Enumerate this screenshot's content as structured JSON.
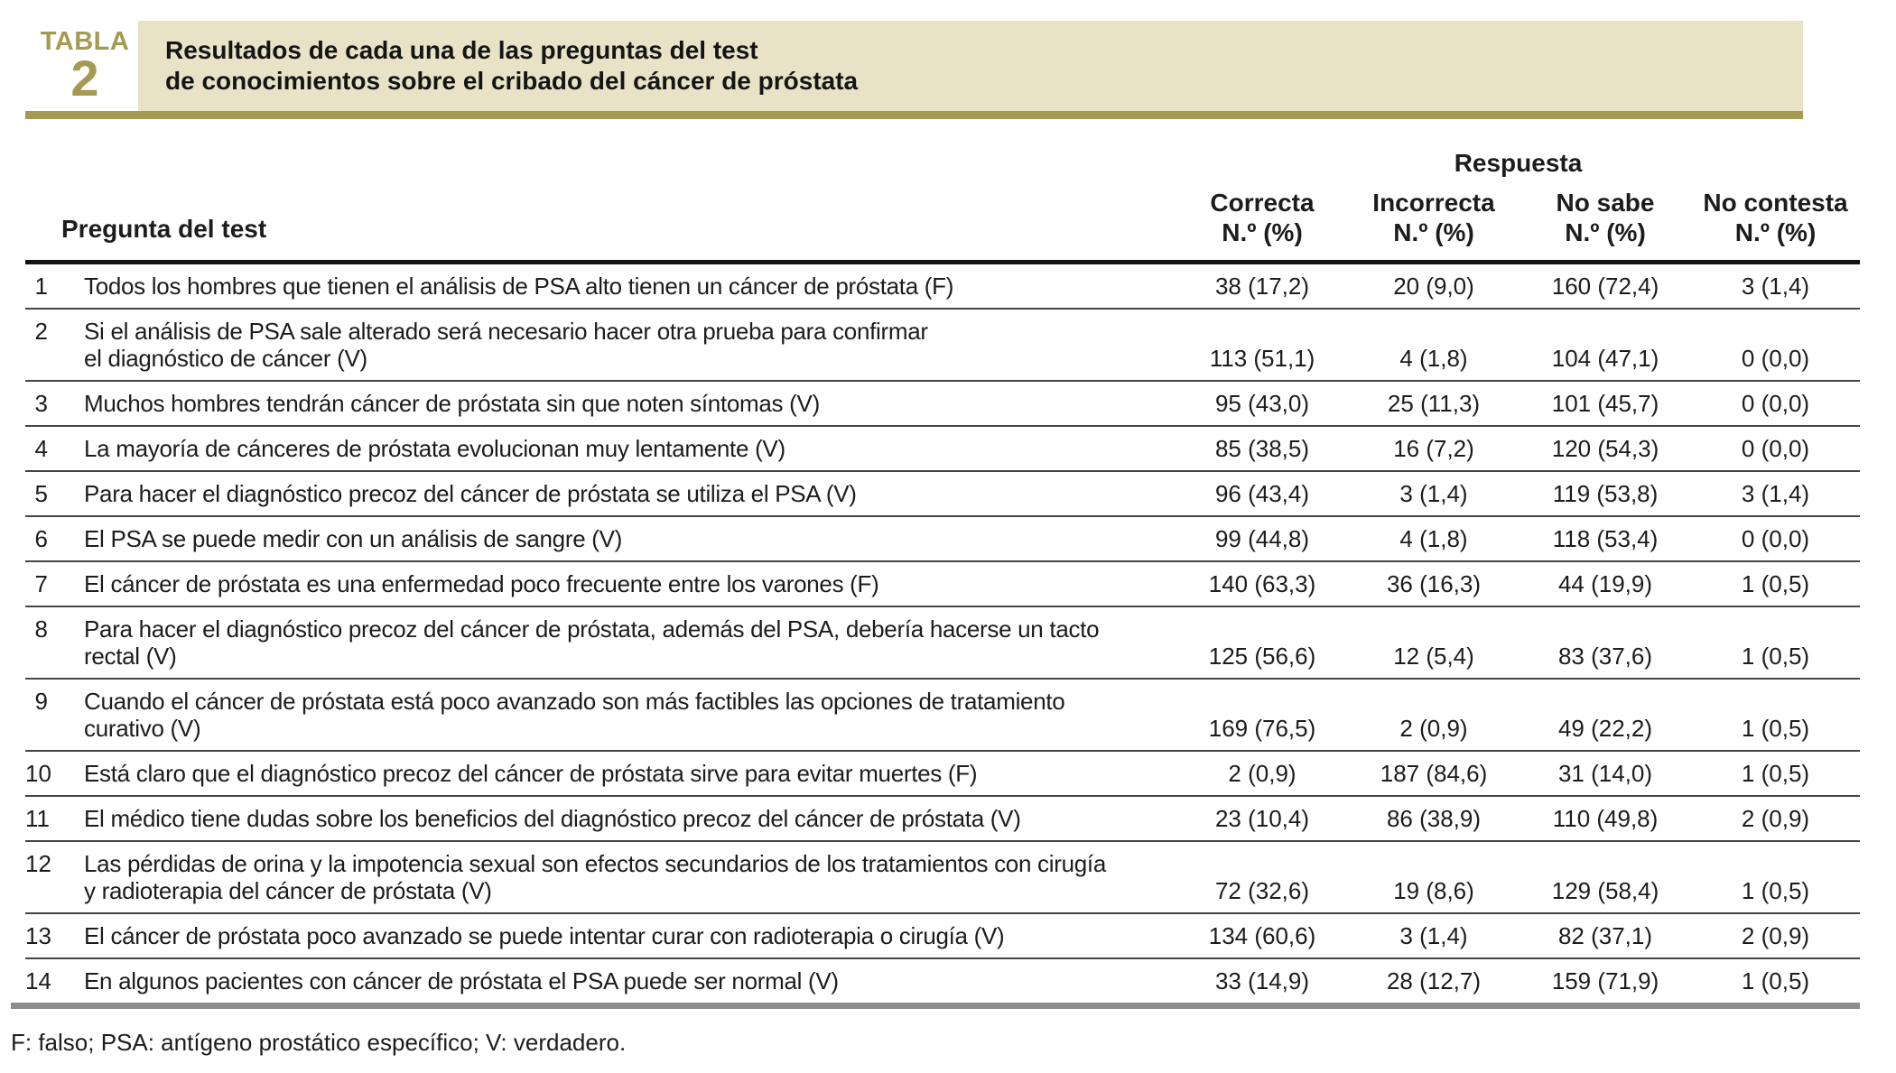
{
  "colors": {
    "accent_olive": "#a49a52",
    "title_beige": "#e8e3c6",
    "bottom_bar_gray": "#8d8d8d"
  },
  "table_label": {
    "word": "TABLA",
    "number": "2"
  },
  "title": {
    "line1": "Resultados de cada una de las preguntas del test",
    "line2": "de conocimientos sobre el cribado del cáncer de próstata"
  },
  "header": {
    "question_col": "Pregunta del test",
    "respuesta": "Respuesta",
    "columns": [
      {
        "label": "Correcta",
        "sub": "N.º (%)"
      },
      {
        "label": "Incorrecta",
        "sub": "N.º (%)"
      },
      {
        "label": "No sabe",
        "sub": "N.º (%)"
      },
      {
        "label": "No contesta",
        "sub": "N.º (%)"
      }
    ]
  },
  "rows": [
    {
      "num": "1",
      "question": "Todos los hombres que tienen el análisis de PSA alto tienen un cáncer de próstata (F)",
      "correcta": "38 (17,2)",
      "incorrecta": "20 (9,0)",
      "no_sabe": "160 (72,4)",
      "no_contesta": "3 (1,4)"
    },
    {
      "num": "2",
      "question": "Si el análisis de PSA sale alterado será necesario hacer otra prueba para confirmar\nel diagnóstico de cáncer (V)",
      "correcta": "113 (51,1)",
      "incorrecta": "4 (1,8)",
      "no_sabe": "104 (47,1)",
      "no_contesta": "0 (0,0)"
    },
    {
      "num": "3",
      "question": "Muchos hombres tendrán cáncer de próstata sin que noten síntomas (V)",
      "correcta": "95 (43,0)",
      "incorrecta": "25 (11,3)",
      "no_sabe": "101 (45,7)",
      "no_contesta": "0 (0,0)"
    },
    {
      "num": "4",
      "question": "La mayoría de cánceres de próstata evolucionan muy lentamente (V)",
      "correcta": "85 (38,5)",
      "incorrecta": "16 (7,2)",
      "no_sabe": "120 (54,3)",
      "no_contesta": "0 (0,0)"
    },
    {
      "num": "5",
      "question": "Para hacer el diagnóstico precoz del cáncer de próstata se utiliza el PSA (V)",
      "correcta": "96 (43,4)",
      "incorrecta": "3 (1,4)",
      "no_sabe": "119 (53,8)",
      "no_contesta": "3 (1,4)"
    },
    {
      "num": "6",
      "question": "El PSA se puede medir con un análisis de sangre (V)",
      "correcta": "99 (44,8)",
      "incorrecta": "4 (1,8)",
      "no_sabe": "118 (53,4)",
      "no_contesta": "0 (0,0)"
    },
    {
      "num": "7",
      "question": "El cáncer de próstata es una enfermedad poco frecuente entre los varones (F)",
      "correcta": "140 (63,3)",
      "incorrecta": "36 (16,3)",
      "no_sabe": "44 (19,9)",
      "no_contesta": "1 (0,5)"
    },
    {
      "num": "8",
      "question": "Para hacer el diagnóstico precoz del cáncer de próstata, además del PSA, debería hacerse un tacto\nrectal (V)",
      "correcta": "125 (56,6)",
      "incorrecta": "12 (5,4)",
      "no_sabe": "83 (37,6)",
      "no_contesta": "1 (0,5)"
    },
    {
      "num": "9",
      "question": "Cuando el cáncer de próstata está poco avanzado son más factibles las opciones de tratamiento\ncurativo (V)",
      "correcta": "169 (76,5)",
      "incorrecta": "2 (0,9)",
      "no_sabe": "49 (22,2)",
      "no_contesta": "1 (0,5)"
    },
    {
      "num": "10",
      "question": "Está claro que el diagnóstico precoz del cáncer de próstata sirve para evitar muertes (F)",
      "correcta": "2 (0,9)",
      "incorrecta": "187 (84,6)",
      "no_sabe": "31 (14,0)",
      "no_contesta": "1 (0,5)"
    },
    {
      "num": "11",
      "question": "El médico tiene dudas sobre los beneficios del diagnóstico precoz del cáncer de próstata (V)",
      "correcta": "23 (10,4)",
      "incorrecta": "86 (38,9)",
      "no_sabe": "110 (49,8)",
      "no_contesta": "2 (0,9)"
    },
    {
      "num": "12",
      "question": "Las pérdidas de orina y la impotencia sexual son efectos secundarios de los tratamientos con cirugía\ny radioterapia del cáncer de próstata (V)",
      "correcta": "72 (32,6)",
      "incorrecta": "19 (8,6)",
      "no_sabe": "129 (58,4)",
      "no_contesta": "1 (0,5)"
    },
    {
      "num": "13",
      "question": "El cáncer de próstata poco avanzado se puede intentar curar con radioterapia o cirugía (V)",
      "correcta": "134 (60,6)",
      "incorrecta": "3 (1,4)",
      "no_sabe": "82 (37,1)",
      "no_contesta": "2 (0,9)"
    },
    {
      "num": "14",
      "question": "En algunos pacientes con cáncer de próstata el PSA puede ser normal (V)",
      "correcta": "33 (14,9)",
      "incorrecta": "28 (12,7)",
      "no_sabe": "159 (71,9)",
      "no_contesta": "1 (0,5)"
    }
  ],
  "footnote": "F: falso; PSA: antígeno prostático específico; V: verdadero."
}
